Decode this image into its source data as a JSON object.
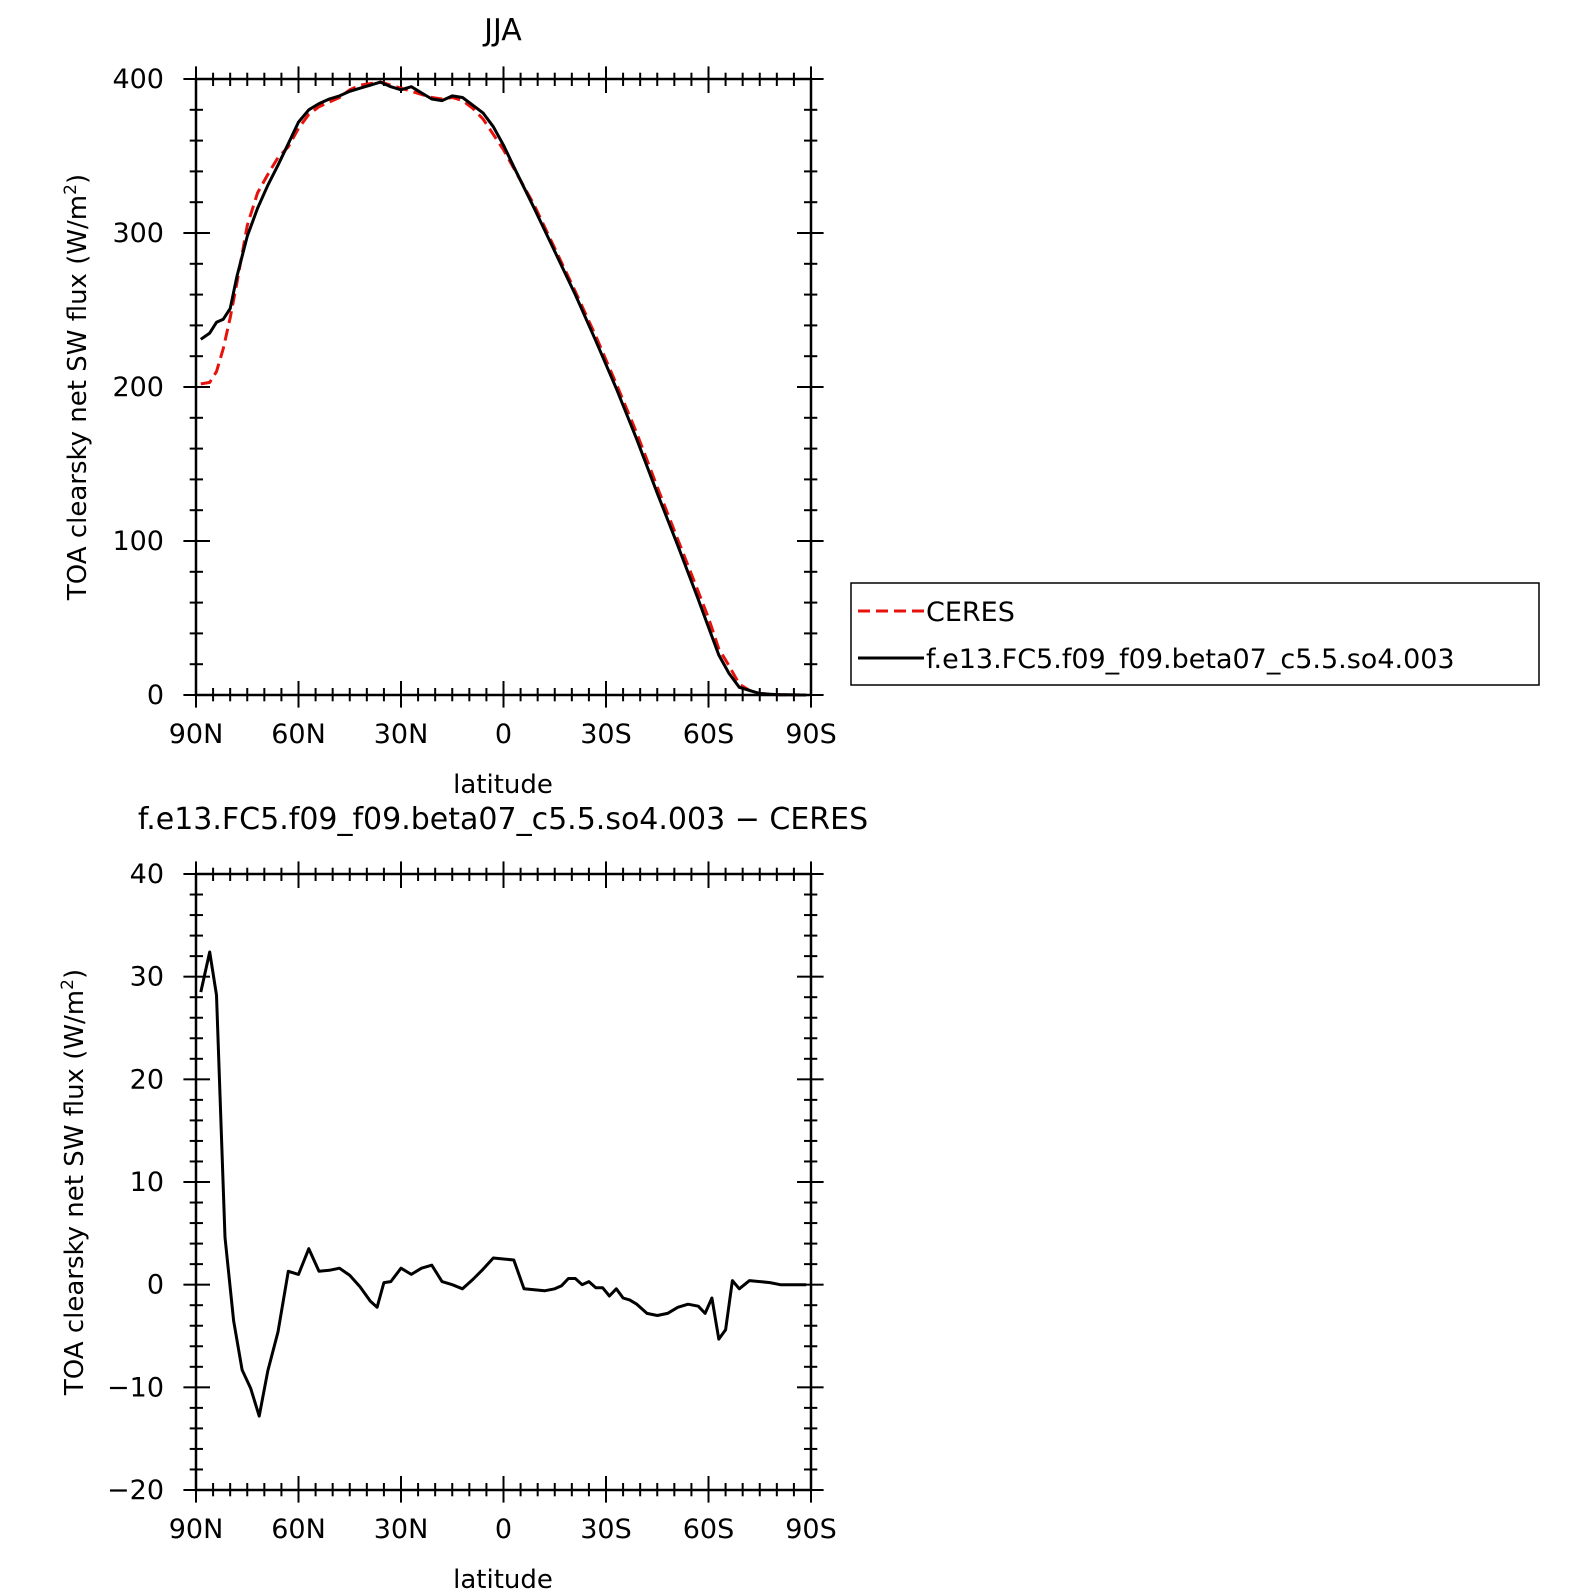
{
  "chart_data": [
    {
      "type": "line",
      "title": "JJA",
      "xlabel": "latitude",
      "ylabel_main": "TOA clearsky net SW flux (W/m",
      "ylabel_sup": "2",
      "ylabel_end": ")",
      "x_ticks": [
        {
          "value": 90,
          "label": "90N"
        },
        {
          "value": 60,
          "label": "60N"
        },
        {
          "value": 30,
          "label": "30N"
        },
        {
          "value": 0,
          "label": "0"
        },
        {
          "value": -30,
          "label": "30S"
        },
        {
          "value": -60,
          "label": "60S"
        },
        {
          "value": -90,
          "label": "90S"
        }
      ],
      "y_ticks": [
        {
          "value": 0,
          "label": "0"
        },
        {
          "value": 100,
          "label": "100"
        },
        {
          "value": 200,
          "label": "200"
        },
        {
          "value": 300,
          "label": "300"
        },
        {
          "value": 400,
          "label": "400"
        }
      ],
      "xlim": [
        90,
        -90
      ],
      "ylim": [
        0,
        400
      ],
      "legend_position": "right",
      "series": [
        {
          "name": "CERES",
          "color": "#e8120c",
          "dash": "dashed",
          "x": [
            88.6,
            86.0,
            84.0,
            82.0,
            80.0,
            78.0,
            75.0,
            72.0,
            69.0,
            66.0,
            63.0,
            60.0,
            57.0,
            54.0,
            51.0,
            48.0,
            45.0,
            42.0,
            39.0,
            36.0,
            33.0,
            30.0,
            27.0,
            24.0,
            21.0,
            18.0,
            15.0,
            12.0,
            9.0,
            6.0,
            3.0,
            0.0,
            -3.0,
            -9.0,
            -15.0,
            -21.0,
            -27.0,
            -33.0,
            -39.0,
            -45.0,
            -51.0,
            -57.0,
            -60.0,
            -63.0,
            -66.0,
            -69.0,
            -72.0,
            -75.0,
            -78.0,
            -81.0,
            -84.0,
            -87.0,
            -88.6
          ],
          "y": [
            202,
            203,
            210,
            225,
            245,
            268,
            305,
            326,
            338,
            349,
            356,
            368,
            377,
            382,
            385,
            388,
            393,
            396,
            397,
            398,
            396,
            394,
            392,
            390,
            388,
            387,
            388,
            386,
            381,
            374,
            364,
            354,
            342,
            318,
            290,
            262,
            233,
            202,
            170,
            135,
            101,
            67,
            50,
            30,
            19,
            7,
            3,
            1,
            0.5,
            0.2,
            0.1,
            0,
            0
          ]
        },
        {
          "name": "f.e13.FC5.f09_f09.beta07_c5.5.so4.003",
          "color": "#000000",
          "dash": "solid",
          "x": [
            88.6,
            86.0,
            84.0,
            82.0,
            80.0,
            78.0,
            75.0,
            72.0,
            69.0,
            66.0,
            63.0,
            60.0,
            57.0,
            54.0,
            51.0,
            48.0,
            45.0,
            42.0,
            39.0,
            36.0,
            33.0,
            30.0,
            27.0,
            24.0,
            21.0,
            18.0,
            15.0,
            12.0,
            9.0,
            6.0,
            3.0,
            0.0,
            -3.0,
            -9.0,
            -15.0,
            -21.0,
            -27.0,
            -33.0,
            -39.0,
            -45.0,
            -51.0,
            -57.0,
            -60.0,
            -63.0,
            -66.0,
            -69.0,
            -72.0,
            -75.0,
            -78.0,
            -81.0,
            -84.0,
            -87.0,
            -88.6
          ],
          "y": [
            231,
            235,
            242,
            244,
            251,
            272,
            298,
            316,
            331,
            344,
            358,
            372,
            380,
            384,
            387,
            389,
            392,
            394,
            396,
            398,
            395,
            393,
            395,
            391,
            387,
            386,
            389,
            388,
            383,
            378,
            369,
            357,
            343,
            316,
            288,
            260,
            230,
            199,
            166,
            131,
            97,
            62,
            44,
            26,
            14,
            5,
            3,
            1,
            0.5,
            0.2,
            0.1,
            0,
            0
          ]
        }
      ]
    },
    {
      "type": "line",
      "title": "f.e13.FC5.f09_f09.beta07_c5.5.so4.003 − CERES",
      "xlabel": "latitude",
      "ylabel_main": "TOA clearsky net SW flux (W/m",
      "ylabel_sup": "2",
      "ylabel_end": ")",
      "x_ticks": [
        {
          "value": 90,
          "label": "90N"
        },
        {
          "value": 60,
          "label": "60N"
        },
        {
          "value": 30,
          "label": "30N"
        },
        {
          "value": 0,
          "label": "0"
        },
        {
          "value": -30,
          "label": "30S"
        },
        {
          "value": -60,
          "label": "60S"
        },
        {
          "value": -90,
          "label": "90S"
        }
      ],
      "y_ticks": [
        {
          "value": -20,
          "label": "−20"
        },
        {
          "value": -10,
          "label": "−10"
        },
        {
          "value": 0,
          "label": "0"
        },
        {
          "value": 10,
          "label": "10"
        },
        {
          "value": 20,
          "label": "20"
        },
        {
          "value": 30,
          "label": "30"
        },
        {
          "value": 40,
          "label": "40"
        }
      ],
      "xlim": [
        90,
        -90
      ],
      "ylim": [
        -20,
        40
      ],
      "series": [
        {
          "name": "",
          "color": "#000000",
          "dash": "solid",
          "x": [
            88.6,
            86.0,
            84.0,
            81.5,
            79.0,
            76.5,
            74.0,
            71.5,
            69.0,
            66.0,
            63.0,
            60.0,
            57.0,
            54.0,
            51.0,
            48.0,
            45.0,
            42.0,
            39.0,
            37.0,
            35.0,
            33.0,
            30.0,
            27.0,
            24.0,
            21.0,
            18.0,
            15.0,
            12.0,
            9.0,
            6.0,
            3.0,
            0.0,
            -3.0,
            -6.0,
            -9.0,
            -12.0,
            -15.0,
            -17.0,
            -19.0,
            -21.0,
            -23.0,
            -25.0,
            -27.0,
            -29.0,
            -31.0,
            -33.0,
            -35.0,
            -37.0,
            -39.0,
            -42.0,
            -45.0,
            -48.0,
            -51.0,
            -54.0,
            -57.0,
            -59.0,
            -61.0,
            -63.0,
            -65.0,
            -67.0,
            -69.0,
            -72.0,
            -75.0,
            -78.0,
            -81.0,
            -84.0,
            -87.0,
            -88.6
          ],
          "y": [
            28.5,
            32.4,
            28.2,
            4.6,
            -3.5,
            -8.3,
            -10.1,
            -12.8,
            -8.4,
            -4.6,
            1.3,
            1.0,
            3.5,
            1.3,
            1.4,
            1.6,
            0.9,
            -0.2,
            -1.6,
            -2.2,
            0.2,
            0.3,
            1.6,
            1.0,
            1.6,
            1.9,
            0.3,
            0.0,
            -0.4,
            0.5,
            1.5,
            2.6,
            2.5,
            2.4,
            -0.4,
            -0.5,
            -0.6,
            -0.4,
            -0.1,
            0.6,
            0.6,
            0.0,
            0.3,
            -0.3,
            -0.3,
            -1.1,
            -0.4,
            -1.3,
            -1.5,
            -1.9,
            -2.8,
            -3.0,
            -2.8,
            -2.2,
            -1.9,
            -2.1,
            -2.8,
            -1.3,
            -5.3,
            -4.4,
            0.4,
            -0.4,
            0.4,
            0.3,
            0.2,
            0.0,
            0.0,
            0.0,
            0.0
          ]
        }
      ]
    }
  ]
}
